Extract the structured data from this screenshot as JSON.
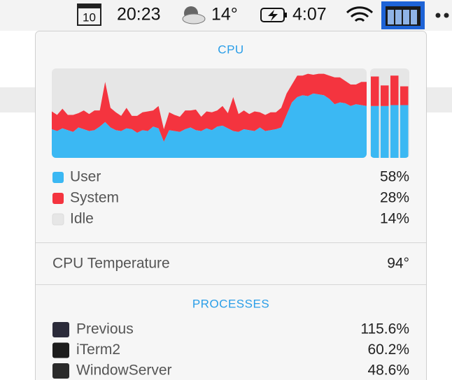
{
  "menu_bar": {
    "calendar_day": "10",
    "clock": "20:23",
    "temperature": "14°",
    "battery_time": "4:07"
  },
  "panel": {
    "title": "CPU",
    "cpu_graph": {
      "ylim": [
        0,
        100
      ],
      "user_color": "#3bb8f3",
      "system_color": "#f4343f",
      "idle_color": "#e6e6e6",
      "user": [
        32,
        30,
        33,
        31,
        29,
        34,
        32,
        30,
        31,
        35,
        40,
        34,
        31,
        30,
        33,
        32,
        28,
        31,
        30,
        35,
        33,
        18,
        31,
        30,
        29,
        32,
        34,
        31,
        30,
        33,
        31,
        35,
        36,
        33,
        30,
        29,
        32,
        31,
        30,
        34,
        30,
        31,
        32,
        34,
        48,
        62,
        68,
        70,
        69,
        72,
        71,
        70,
        66,
        60,
        62,
        61,
        58,
        60,
        59,
        58
      ],
      "system": [
        20,
        18,
        22,
        17,
        19,
        16,
        21,
        19,
        22,
        18,
        45,
        22,
        20,
        17,
        23,
        15,
        19,
        20,
        22,
        18,
        25,
        14,
        20,
        18,
        17,
        21,
        19,
        23,
        16,
        19,
        20,
        18,
        22,
        17,
        38,
        20,
        21,
        18,
        22,
        17,
        18,
        20,
        19,
        22,
        24,
        20,
        24,
        22,
        25,
        21,
        23,
        24,
        26,
        30,
        28,
        25,
        24,
        22,
        26,
        27
      ],
      "cores": {
        "user": [
          58,
          58,
          59,
          59
        ],
        "system": [
          33,
          23,
          33,
          21
        ]
      }
    },
    "legend": [
      {
        "label": "User",
        "value": "58%"
      },
      {
        "label": "System",
        "value": "28%"
      },
      {
        "label": "Idle",
        "value": "14%"
      }
    ],
    "temperature": {
      "label": "CPU Temperature",
      "value": "94°"
    },
    "processes_title": "PROCESSES",
    "processes": [
      {
        "name": "Previous",
        "value": "115.6%"
      },
      {
        "name": "iTerm2",
        "value": "60.2%"
      },
      {
        "name": "WindowServer",
        "value": "48.6%"
      }
    ]
  }
}
